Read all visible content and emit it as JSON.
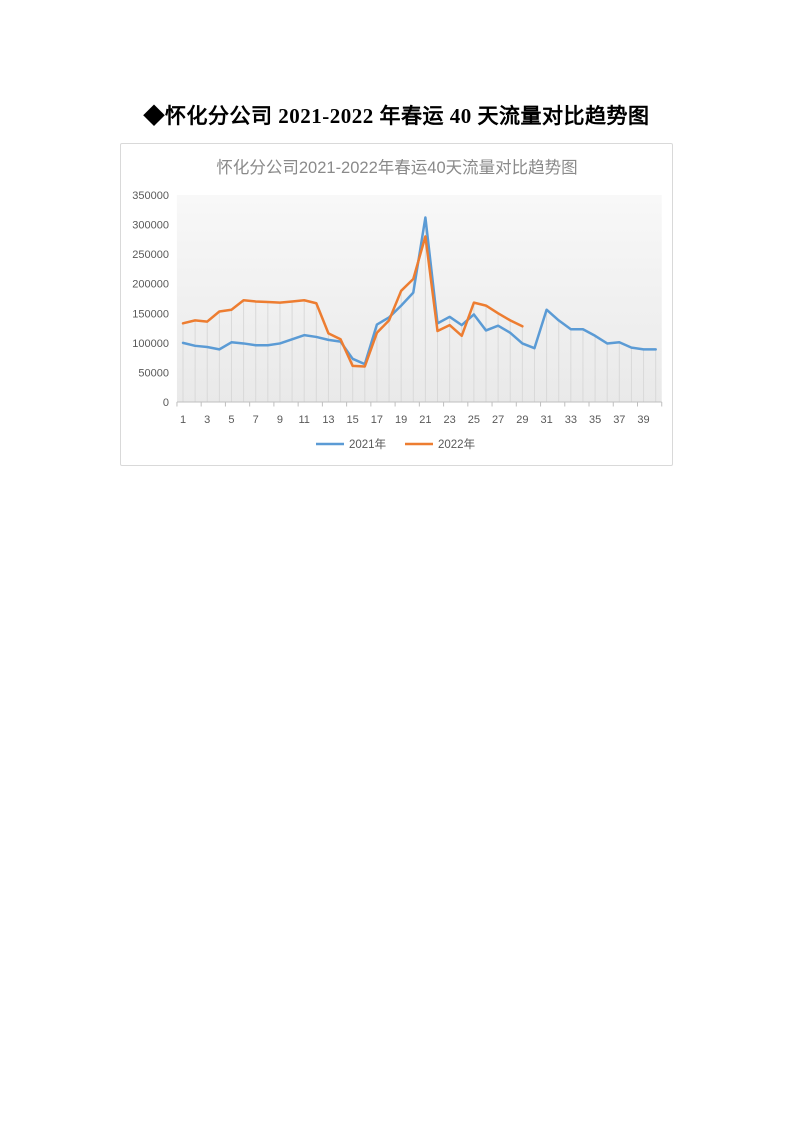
{
  "page": {
    "heading": "◆怀化分公司 2021-2022 年春运 40 天流量对比趋势图"
  },
  "chart_data": {
    "type": "line",
    "title": "怀化分公司2021-2022年春运40天流量对比趋势图",
    "xlabel": "",
    "ylabel": "",
    "x": [
      1,
      2,
      3,
      4,
      5,
      6,
      7,
      8,
      9,
      10,
      11,
      12,
      13,
      14,
      15,
      16,
      17,
      18,
      19,
      20,
      21,
      22,
      23,
      24,
      25,
      26,
      27,
      28,
      29,
      30,
      31,
      32,
      33,
      34,
      35,
      36,
      37,
      38,
      39,
      40
    ],
    "x_tick_labels": [
      "1",
      "3",
      "5",
      "7",
      "9",
      "11",
      "13",
      "15",
      "17",
      "19",
      "21",
      "23",
      "25",
      "27",
      "29",
      "31",
      "33",
      "35",
      "37",
      "39"
    ],
    "ylim": [
      0,
      350000
    ],
    "yticks": [
      0,
      50000,
      100000,
      150000,
      200000,
      250000,
      300000,
      350000
    ],
    "legend_position": "bottom",
    "grid": "drop-lines",
    "series": [
      {
        "name": "2021年",
        "color": "#5B9BD5",
        "values": [
          100000,
          95000,
          93000,
          89000,
          101000,
          99000,
          96000,
          96000,
          99000,
          106000,
          113000,
          110000,
          105000,
          102000,
          73000,
          64000,
          131000,
          143000,
          163000,
          185000,
          312000,
          133000,
          144000,
          130000,
          148000,
          121000,
          129000,
          117000,
          99000,
          91000,
          156000,
          138000,
          123000,
          123000,
          112000,
          99000,
          101000,
          92000,
          89000,
          89000
        ]
      },
      {
        "name": "2022年",
        "color": "#ED7D31",
        "values": [
          133000,
          138000,
          136000,
          153000,
          156000,
          172000,
          170000,
          169000,
          168000,
          170000,
          172000,
          167000,
          116000,
          106000,
          61000,
          60000,
          117000,
          138000,
          188000,
          208000,
          280000,
          120000,
          130000,
          112000,
          168000,
          163000,
          150000,
          138000,
          128000
        ]
      }
    ],
    "colors": {
      "title_text": "#8a8a8a",
      "tick_label_text": "#595959",
      "axis_line": "#bfbfbf",
      "drop_line": "#d9d9d9",
      "plot_bg_top": "#f8f8f8",
      "plot_bg_bottom": "#e9e9e9"
    }
  }
}
